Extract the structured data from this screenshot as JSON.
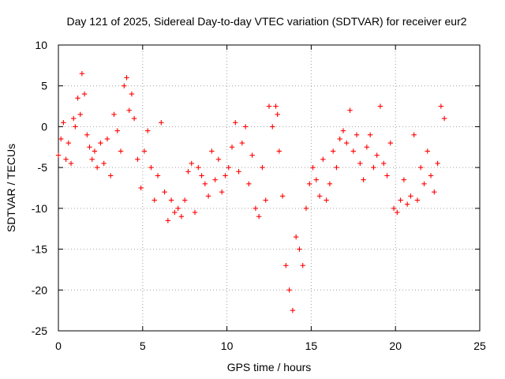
{
  "chart_data": {
    "type": "scatter",
    "title": "Day 121 of 2025, Sidereal Day-to-day VTEC variation (SDTVAR) for receiver eur2",
    "xlabel": "GPS time / hours",
    "ylabel": "SDTVAR / TECUs",
    "xlim": [
      0,
      25
    ],
    "ylim": [
      -25,
      10
    ],
    "xticks": [
      "0",
      "5",
      "10",
      "15",
      "20",
      "25"
    ],
    "xtick_values": [
      0,
      5,
      10,
      15,
      20,
      25
    ],
    "yticks": [
      "10",
      "5",
      "0",
      "-5",
      "-10",
      "-15",
      "-20",
      "-25"
    ],
    "ytick_values": [
      10,
      5,
      0,
      -5,
      -10,
      -15,
      -20,
      -25
    ],
    "grid": true,
    "marker": "+",
    "color": "#ff0000",
    "series": [
      {
        "name": "SDTVAR eur2",
        "x": [
          0.0,
          0.15,
          0.3,
          0.45,
          0.6,
          0.75,
          0.9,
          1.0,
          1.15,
          1.3,
          1.4,
          1.55,
          1.7,
          1.85,
          2.0,
          2.15,
          2.3,
          2.5,
          2.7,
          2.9,
          3.1,
          3.3,
          3.5,
          3.7,
          3.9,
          4.05,
          4.2,
          4.35,
          4.5,
          4.7,
          4.9,
          5.1,
          5.3,
          5.5,
          5.7,
          5.9,
          6.1,
          6.3,
          6.5,
          6.7,
          6.9,
          7.1,
          7.3,
          7.5,
          7.7,
          7.9,
          8.1,
          8.3,
          8.5,
          8.7,
          8.9,
          9.1,
          9.3,
          9.5,
          9.7,
          9.9,
          10.1,
          10.3,
          10.5,
          10.7,
          10.9,
          11.1,
          11.3,
          11.5,
          11.7,
          11.9,
          12.1,
          12.3,
          12.5,
          12.7,
          12.9,
          13.0,
          13.1,
          13.3,
          13.5,
          13.7,
          13.9,
          14.1,
          14.3,
          14.5,
          14.7,
          14.9,
          15.1,
          15.3,
          15.5,
          15.7,
          15.9,
          16.1,
          16.3,
          16.5,
          16.7,
          16.9,
          17.1,
          17.3,
          17.5,
          17.7,
          17.9,
          18.1,
          18.3,
          18.5,
          18.7,
          18.9,
          19.1,
          19.3,
          19.5,
          19.7,
          19.9,
          20.1,
          20.3,
          20.5,
          20.7,
          20.9,
          21.1,
          21.3,
          21.5,
          21.7,
          21.9,
          22.1,
          22.3,
          22.5,
          22.7,
          22.9
        ],
        "y": [
          -3.5,
          -1.5,
          0.5,
          -4.0,
          -2.0,
          -4.5,
          1.0,
          0.0,
          3.5,
          1.5,
          6.5,
          4.0,
          -1.0,
          -2.5,
          -4.0,
          -3.0,
          -5.0,
          -2.0,
          -4.5,
          -1.5,
          -6.0,
          1.5,
          -0.5,
          -3.0,
          5.0,
          6.0,
          2.0,
          4.0,
          1.0,
          -4.0,
          -7.5,
          -3.0,
          -0.5,
          -5.0,
          -9.0,
          -6.0,
          0.5,
          -8.0,
          -11.5,
          -9.0,
          -10.5,
          -10.0,
          -11.0,
          -9.0,
          -5.5,
          -4.5,
          -10.5,
          -5.0,
          -6.0,
          -7.0,
          -8.5,
          -3.0,
          -6.5,
          -4.0,
          -8.0,
          -6.0,
          -5.0,
          -2.5,
          0.5,
          -5.5,
          -2.0,
          0.0,
          -7.0,
          -3.5,
          -10.0,
          -11.0,
          -5.0,
          -9.0,
          2.5,
          0.0,
          2.5,
          1.5,
          -3.0,
          -8.5,
          -17.0,
          -20.0,
          -22.5,
          -13.5,
          -15.0,
          -17.0,
          -10.0,
          -7.0,
          -5.0,
          -6.5,
          -8.5,
          -4.0,
          -9.0,
          -7.0,
          -3.0,
          -5.0,
          -1.5,
          -0.5,
          -2.0,
          2.0,
          -3.0,
          -1.0,
          -4.5,
          -6.5,
          -2.5,
          -1.0,
          -5.0,
          -3.5,
          2.5,
          -4.5,
          -6.0,
          -2.0,
          -10.0,
          -10.5,
          -9.0,
          -6.5,
          -9.5,
          -8.5,
          -1.0,
          -9.0,
          -5.0,
          -7.0,
          -3.0,
          -6.0,
          -8.0,
          -4.5,
          2.5,
          1.0
        ]
      }
    ]
  }
}
